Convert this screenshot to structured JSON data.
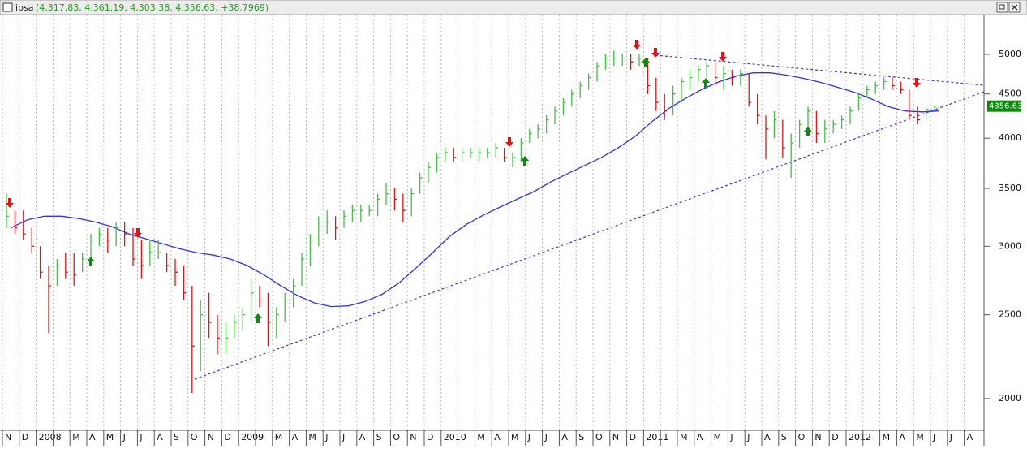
{
  "chart_data": {
    "type": "ohlc",
    "title": "ipsa",
    "caption": "(4,317.83, 4,361.19, 4,303.38, 4,356.63, +38.7969)",
    "categories": [
      "N",
      "D",
      "2008",
      null,
      "M",
      "A",
      "M",
      "J",
      "J",
      "A",
      "S",
      "O",
      "N",
      "D",
      "2009",
      null,
      "M",
      "A",
      "M",
      "J",
      "J",
      "A",
      "S",
      "O",
      "N",
      "D",
      "2010",
      null,
      "M",
      "A",
      "M",
      "J",
      "J",
      "A",
      "S",
      "O",
      "N",
      "D",
      "2011",
      null,
      "M",
      "A",
      "M",
      "J",
      "J",
      "A",
      "S",
      "O",
      "N",
      "D",
      "2012",
      null,
      "M",
      "A",
      "M",
      "J",
      "J",
      "A"
    ],
    "high": [
      [
        3450,
        3300
      ],
      [
        3300,
        3150
      ],
      [
        3000,
        2850
      ],
      [
        2900,
        2950
      ],
      [
        2950,
        2950
      ],
      [
        3100,
        3150
      ],
      [
        3150,
        3200
      ],
      [
        3200,
        3150
      ],
      [
        3050,
        3050
      ],
      [
        3050,
        2950
      ],
      [
        2900,
        2850
      ],
      [
        2700,
        2600
      ],
      [
        2650,
        2500
      ],
      [
        2450,
        2500
      ],
      [
        2550,
        2750
      ],
      [
        2700,
        2650
      ],
      [
        2550,
        2650
      ],
      [
        2750,
        2950
      ],
      [
        3100,
        3250
      ],
      [
        3300,
        3250
      ],
      [
        3300,
        3350
      ],
      [
        3350,
        3350
      ],
      [
        3450,
        3550
      ],
      [
        3500,
        3450
      ],
      [
        3500,
        3650
      ],
      [
        3750,
        3850
      ],
      [
        3900,
        3900
      ],
      [
        3900,
        3900
      ],
      [
        3900,
        3900
      ],
      [
        3950,
        3900
      ],
      [
        3850,
        4000
      ],
      [
        4100,
        4150
      ],
      [
        4250,
        4350
      ],
      [
        4450,
        4550
      ],
      [
        4650,
        4750
      ],
      [
        4900,
        5000
      ],
      [
        5050,
        5000
      ],
      [
        5000,
        5000
      ],
      [
        4950,
        4700
      ],
      [
        4500,
        4600
      ],
      [
        4700,
        4800
      ],
      [
        4850,
        4900
      ],
      [
        4900,
        4850
      ],
      [
        4800,
        4800
      ],
      [
        4750,
        4500
      ],
      [
        4250,
        4300
      ],
      [
        4200,
        4050
      ],
      [
        4200,
        4350
      ],
      [
        4300,
        4200
      ],
      [
        4200,
        4250
      ],
      [
        4350,
        4500
      ],
      [
        4600,
        4650
      ],
      [
        4700,
        4700
      ],
      [
        4650,
        4550
      ],
      [
        4350,
        4350
      ],
      [
        4361.19
      ],
      null,
      null
    ],
    "low": [
      [
        3150,
        3100
      ],
      [
        3050,
        2950
      ],
      [
        2750,
        2380
      ],
      [
        2700,
        2750
      ],
      [
        2700,
        2800
      ],
      [
        2900,
        3000
      ],
      [
        2950,
        3000
      ],
      [
        3000,
        2850
      ],
      [
        2750,
        2850
      ],
      [
        2900,
        2800
      ],
      [
        2700,
        2600
      ],
      [
        2030,
        2150
      ],
      [
        2350,
        2250
      ],
      [
        2250,
        2350
      ],
      [
        2400,
        2450
      ],
      [
        2550,
        2300
      ],
      [
        2350,
        2450
      ],
      [
        2550,
        2700
      ],
      [
        2850,
        3000
      ],
      [
        3100,
        3050
      ],
      [
        3150,
        3200
      ],
      [
        3200,
        3250
      ],
      [
        3250,
        3350
      ],
      [
        3300,
        3200
      ],
      [
        3250,
        3450
      ],
      [
        3550,
        3650
      ],
      [
        3750,
        3750
      ],
      [
        3750,
        3800
      ],
      [
        3750,
        3800
      ],
      [
        3800,
        3750
      ],
      [
        3700,
        3750
      ],
      [
        3950,
        4000
      ],
      [
        4050,
        4150
      ],
      [
        4250,
        4350
      ],
      [
        4450,
        4550
      ],
      [
        4650,
        4800
      ],
      [
        4850,
        4850
      ],
      [
        4800,
        4850
      ],
      [
        4500,
        4300
      ],
      [
        4200,
        4250
      ],
      [
        4400,
        4550
      ],
      [
        4650,
        4700
      ],
      [
        4600,
        4550
      ],
      [
        4600,
        4600
      ],
      [
        4350,
        4150
      ],
      [
        3780,
        4000
      ],
      [
        3800,
        3600
      ],
      [
        3900,
        4100
      ],
      [
        3950,
        3950
      ],
      [
        4050,
        4100
      ],
      [
        4150,
        4300
      ],
      [
        4450,
        4500
      ],
      [
        4550,
        4550
      ],
      [
        4500,
        4200
      ],
      [
        4150,
        4200
      ],
      [
        4303.38
      ],
      null,
      null
    ],
    "close": [
      [
        3250,
        3150
      ],
      [
        3100,
        3000
      ],
      [
        2800,
        2700
      ],
      [
        2850,
        2800
      ],
      [
        2780,
        2900
      ],
      [
        3050,
        3100
      ],
      [
        3050,
        3150
      ],
      [
        3100,
        2900
      ],
      [
        2850,
        2950
      ],
      [
        2950,
        2850
      ],
      [
        2800,
        2650
      ],
      [
        2300,
        2500
      ],
      [
        2450,
        2350
      ],
      [
        2350,
        2450
      ],
      [
        2500,
        2650
      ],
      [
        2600,
        2450
      ],
      [
        2500,
        2600
      ],
      [
        2700,
        2900
      ],
      [
        3050,
        3200
      ],
      [
        3200,
        3150
      ],
      [
        3250,
        3300
      ],
      [
        3300,
        3300
      ],
      [
        3400,
        3450
      ],
      [
        3400,
        3300
      ],
      [
        3450,
        3600
      ],
      [
        3700,
        3800
      ],
      [
        3850,
        3800
      ],
      [
        3850,
        3850
      ],
      [
        3850,
        3850
      ],
      [
        3900,
        3800
      ],
      [
        3800,
        3950
      ],
      [
        4050,
        4100
      ],
      [
        4200,
        4300
      ],
      [
        4400,
        4500
      ],
      [
        4600,
        4700
      ],
      [
        4850,
        4950
      ],
      [
        4950,
        4950
      ],
      [
        4900,
        4950
      ],
      [
        4600,
        4400
      ],
      [
        4300,
        4500
      ],
      [
        4650,
        4700
      ],
      [
        4800,
        4850
      ],
      [
        4700,
        4750
      ],
      [
        4700,
        4750
      ],
      [
        4400,
        4250
      ],
      [
        4100,
        4200
      ],
      [
        3900,
        3950
      ],
      [
        4150,
        4300
      ],
      [
        4050,
        4100
      ],
      [
        4150,
        4200
      ],
      [
        4300,
        4450
      ],
      [
        4550,
        4600
      ],
      [
        4650,
        4600
      ],
      [
        4550,
        4250
      ],
      [
        4200,
        4317.83
      ],
      [
        4356.63
      ],
      null,
      null
    ],
    "up_color": "#3fc43f",
    "down_color": "#e81010",
    "moving_average": {
      "color": "#3030f0",
      "values": [
        3150,
        3220,
        3250,
        3250,
        3230,
        3200,
        3160,
        3100,
        3060,
        3020,
        2980,
        2950,
        2930,
        2900,
        2850,
        2780,
        2700,
        2630,
        2580,
        2555,
        2560,
        2590,
        2640,
        2720,
        2830,
        2950,
        3080,
        3180,
        3260,
        3330,
        3400,
        3470,
        3560,
        3640,
        3720,
        3800,
        3900,
        4020,
        4180,
        4330,
        4450,
        4560,
        4650,
        4720,
        4760,
        4760,
        4730,
        4690,
        4640,
        4580,
        4520,
        4440,
        4350,
        4300,
        4290,
        4300,
        null,
        null
      ]
    },
    "log_scale": true,
    "ylim": [
      1838,
      5558
    ],
    "yticks": [
      2000,
      2500,
      3000,
      3500,
      4000,
      4500,
      5000
    ],
    "grid": "x"
  }
}
